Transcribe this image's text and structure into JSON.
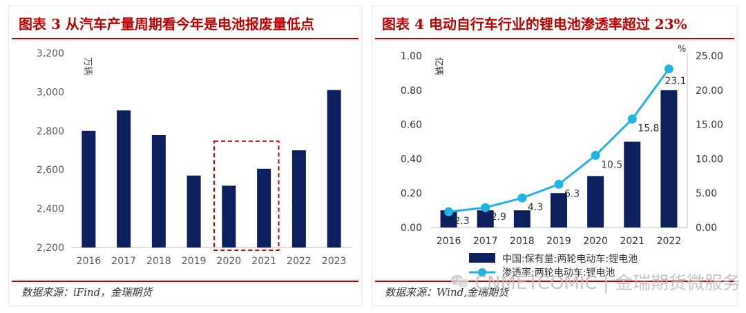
{
  "left": {
    "title": "图表 3 从汽车产量周期看今年是电池报废量低点",
    "source": "数据来源：iFind，金瑞期货"
  },
  "right": {
    "title": "图表 4 电动自行车行业的锂电池渗透率超过 23%",
    "source": "数据来源：Wind,金瑞期货"
  },
  "watermark": "CNMETCOMIC | 金瑞期货微服务",
  "chart_data": [
    {
      "type": "bar",
      "title": "从汽车产量周期看今年是电池报废量低点",
      "ylabel": "万辆",
      "categories": [
        "2016",
        "2017",
        "2018",
        "2019",
        "2020",
        "2021",
        "2022",
        "2023"
      ],
      "values": [
        2800,
        2905,
        2778,
        2570,
        2518,
        2605,
        2700,
        3010
      ],
      "ylim": [
        2200,
        3200
      ],
      "yticks": [
        "2,200",
        "2,400",
        "2,600",
        "2,800",
        "3,000",
        "3,200"
      ],
      "highlight": [
        "2020",
        "2021"
      ],
      "colors": {
        "bar": "#0d1f5c",
        "highlight": "#c00000"
      }
    },
    {
      "type": "bar+line",
      "title": "电动自行车行业的锂电池渗透率超过 23%",
      "categories": [
        "2016",
        "2017",
        "2018",
        "2019",
        "2020",
        "2021",
        "2022"
      ],
      "series": [
        {
          "name": "中国:保有量:两轮电动车:锂电池",
          "type": "bar",
          "axis": "left",
          "unit": "亿辆",
          "values": [
            0.1,
            0.1,
            0.1,
            0.2,
            0.3,
            0.5,
            0.8
          ],
          "color": "#0d1f5c"
        },
        {
          "name": "渗透率:两轮电动车:锂电池",
          "type": "line",
          "axis": "right",
          "unit": "%",
          "values": [
            2.3,
            2.9,
            4.3,
            6.3,
            10.5,
            15.8,
            23.1
          ],
          "color": "#1fb4e3"
        }
      ],
      "data_labels": [
        "2.3",
        "2.9",
        "4.3",
        "6.3",
        "10.5",
        "15.8",
        "23.1"
      ],
      "ylim_left": [
        0,
        1.0
      ],
      "yticks_left": [
        "0.00",
        "0.20",
        "0.40",
        "0.60",
        "0.80",
        "1.00"
      ],
      "ylabel_left": "亿辆",
      "ylim_right": [
        0,
        25
      ],
      "yticks_right": [
        "0.00",
        "5.00",
        "10.00",
        "15.00",
        "20.00",
        "25.00"
      ],
      "ylabel_right": "%"
    }
  ]
}
